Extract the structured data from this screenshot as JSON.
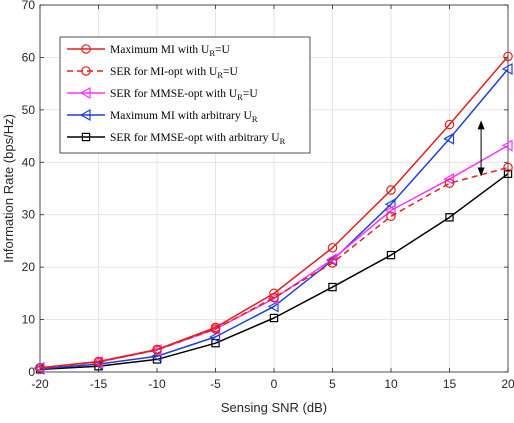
{
  "chart_data": {
    "type": "line",
    "xlabel": "Sensing SNR (dB)",
    "ylabel": "Information Rate (bps/Hz)",
    "xlim": [
      -20,
      20
    ],
    "ylim": [
      0,
      70
    ],
    "xticks": [
      -20,
      -15,
      -10,
      -5,
      0,
      5,
      10,
      15,
      20
    ],
    "yticks": [
      0,
      10,
      20,
      30,
      40,
      50,
      60,
      70
    ],
    "grid": true,
    "legend_position": "top-left",
    "x": [
      -20,
      -15,
      -10,
      -5,
      0,
      5,
      10,
      15,
      20
    ],
    "series": [
      {
        "name": "Maximum MI with U",
        "name_sub": "R",
        "name_tail": "=U",
        "color": "#e02020",
        "dash": "solid",
        "marker": "circle",
        "values": [
          0.8,
          2.0,
          4.3,
          8.5,
          15.0,
          23.7,
          34.7,
          47.2,
          60.2
        ]
      },
      {
        "name": "SER for MI-opt with U",
        "name_sub": "R",
        "name_tail": "=U",
        "color": "#e02020",
        "dash": "dashed",
        "marker": "circle",
        "values": [
          0.8,
          1.9,
          4.2,
          8.2,
          14.2,
          20.8,
          29.7,
          36.0,
          39.0
        ]
      },
      {
        "name": "SER for MMSE-opt with U",
        "name_sub": "R",
        "name_tail": "=U",
        "color": "#ff33ff",
        "dash": "solid",
        "marker": "triangle-left",
        "values": [
          0.8,
          1.9,
          4.2,
          8.2,
          14.0,
          21.5,
          30.8,
          36.8,
          43.2
        ]
      },
      {
        "name": "Maximum MI with arbitrary U",
        "name_sub": "R",
        "name_tail": "",
        "color": "#1f3fd8",
        "dash": "solid",
        "marker": "triangle-left",
        "values": [
          0.6,
          1.5,
          3.0,
          6.7,
          12.5,
          21.3,
          32.0,
          44.5,
          57.8
        ]
      },
      {
        "name": "SER for MMSE-opt with arbitrary U",
        "name_sub": "R",
        "name_tail": "",
        "color": "#000000",
        "dash": "solid",
        "marker": "square",
        "values": [
          0.5,
          1.1,
          2.4,
          5.5,
          10.3,
          16.2,
          22.3,
          29.5,
          37.8
        ]
      }
    ],
    "annotations": [
      {
        "type": "double-arrow",
        "x": 17.7,
        "y_from": 37.3,
        "y_to": 48.0,
        "color": "#000000"
      }
    ]
  }
}
